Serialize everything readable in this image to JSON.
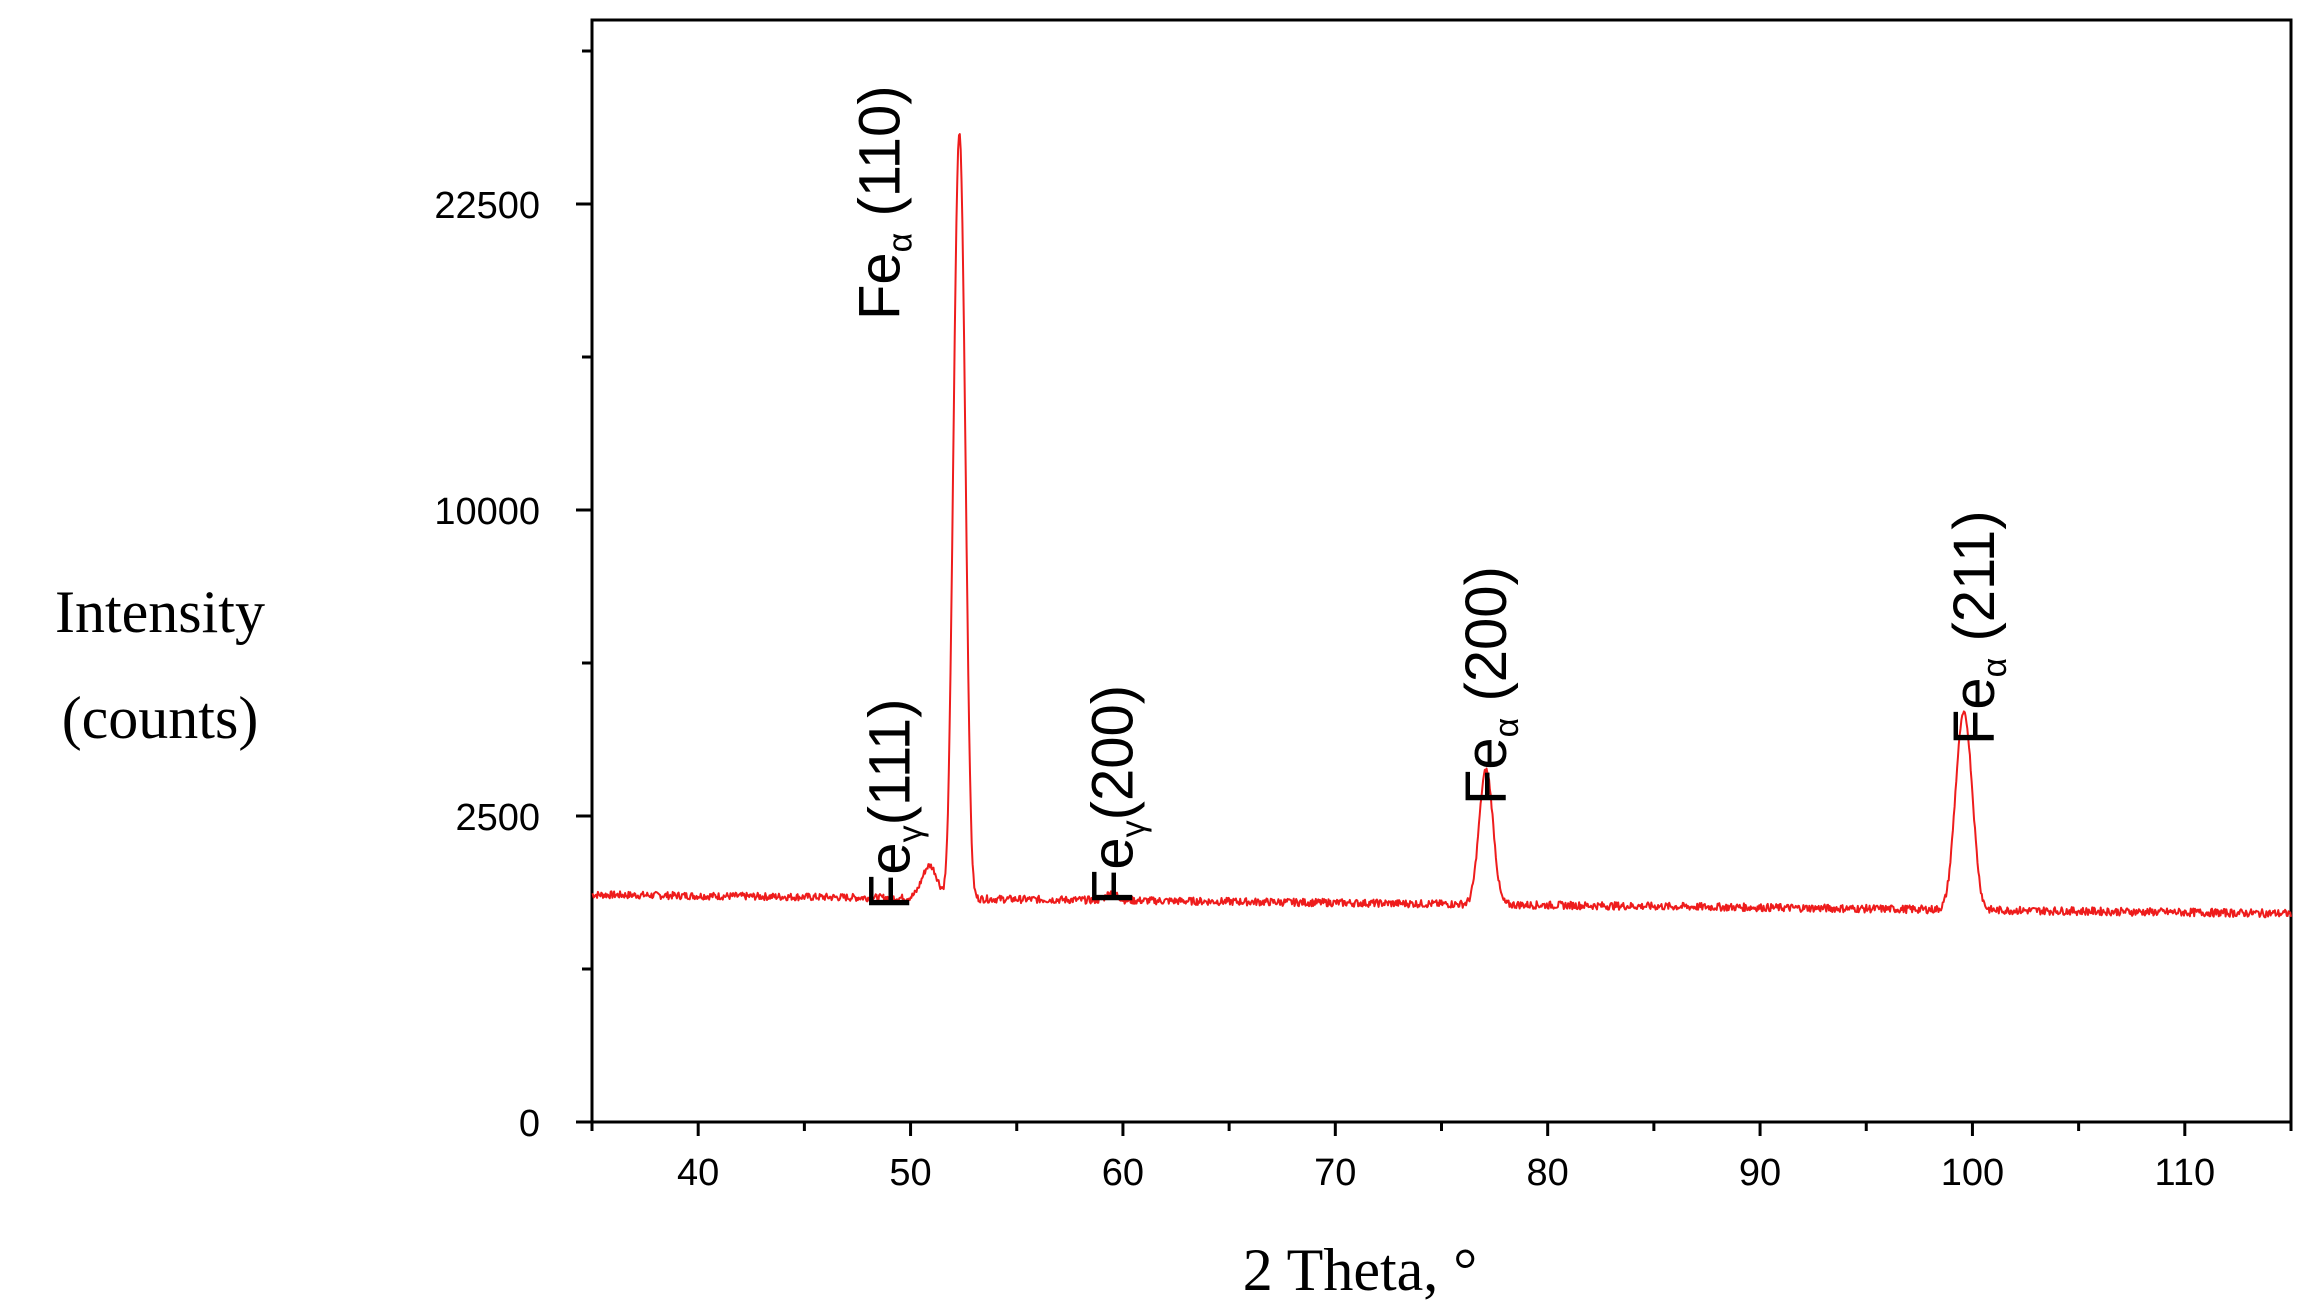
{
  "chart_data": {
    "type": "line",
    "xlabel": "2 Theta, °",
    "ylabel_lines": [
      "Intensity",
      "(counts)"
    ],
    "xlim": [
      35,
      115
    ],
    "ylim_ticks": [
      "0",
      "2500",
      "10000",
      "22500"
    ],
    "x_ticks": [
      "40",
      "50",
      "60",
      "70",
      "80",
      "90",
      "100",
      "110"
    ],
    "line_color": "#ee1c1c",
    "baseline_start": 1380,
    "baseline_end": 1160,
    "peaks": [
      {
        "x": 50.9,
        "height": 420,
        "width": 0.35
      },
      {
        "x": 52.3,
        "height": 24800,
        "width": 0.22
      },
      {
        "x": 59.5,
        "height": 100,
        "width": 0.25
      },
      {
        "x": 77.1,
        "height": 2050,
        "width": 0.3
      },
      {
        "x": 99.6,
        "height": 3260,
        "width": 0.35
      }
    ],
    "annotations": [
      {
        "base": "Fe",
        "sub": "γ",
        "rest": "(111)",
        "x": 50.9
      },
      {
        "base": "Fe",
        "sub": "α",
        "rest": " (110)",
        "x": 52.3
      },
      {
        "base": "Fe",
        "sub": "γ",
        "rest": "(200)",
        "x": 59.5
      },
      {
        "base": "Fe",
        "sub": "α",
        "rest": " (200)",
        "x": 77.1
      },
      {
        "base": "Fe",
        "sub": "α",
        "rest": " (211)",
        "x": 99.6
      }
    ]
  }
}
